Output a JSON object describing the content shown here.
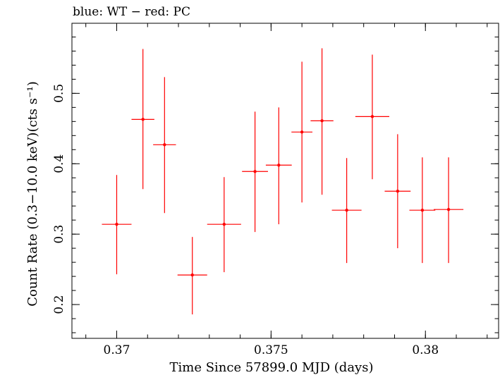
{
  "chart_data": {
    "type": "scatter",
    "title": "blue: WT − red: PC",
    "xlabel": "Time Since 57899.0 MJD (days)",
    "ylabel": "Count Rate (0.3−10.0 keV)(cts s⁻¹)",
    "xlim": [
      0.36855,
      0.38237
    ],
    "ylim": [
      0.152,
      0.5995
    ],
    "x_major_ticks": [
      0.37,
      0.375,
      0.38
    ],
    "x_tick_labels": [
      "0.37",
      "0.375",
      "0.38"
    ],
    "x_minor_step": 0.001,
    "y_major_ticks": [
      0.2,
      0.3,
      0.4,
      0.5
    ],
    "y_tick_labels": [
      "0.2",
      "0.3",
      "0.4",
      "0.5"
    ],
    "y_minor_step": 0.02,
    "grid": false,
    "series": [
      {
        "color": "#ff0000",
        "points": [
          {
            "x": 0.37,
            "y": 0.314,
            "xerr": 0.00048,
            "ylo": 0.243,
            "yhi": 0.384
          },
          {
            "x": 0.37085,
            "y": 0.463,
            "xerr": 0.00037,
            "ylo": 0.364,
            "yhi": 0.563
          },
          {
            "x": 0.37155,
            "y": 0.427,
            "xerr": 0.00037,
            "ylo": 0.33,
            "yhi": 0.523
          },
          {
            "x": 0.37245,
            "y": 0.242,
            "xerr": 0.00048,
            "ylo": 0.186,
            "yhi": 0.296
          },
          {
            "x": 0.37348,
            "y": 0.314,
            "xerr": 0.00055,
            "ylo": 0.246,
            "yhi": 0.381
          },
          {
            "x": 0.37448,
            "y": 0.389,
            "xerr": 0.00042,
            "ylo": 0.303,
            "yhi": 0.474
          },
          {
            "x": 0.37525,
            "y": 0.398,
            "xerr": 0.00042,
            "ylo": 0.314,
            "yhi": 0.48
          },
          {
            "x": 0.376,
            "y": 0.445,
            "xerr": 0.00034,
            "ylo": 0.345,
            "yhi": 0.545
          },
          {
            "x": 0.37665,
            "y": 0.461,
            "xerr": 0.00037,
            "ylo": 0.356,
            "yhi": 0.564
          },
          {
            "x": 0.37745,
            "y": 0.334,
            "xerr": 0.00048,
            "ylo": 0.259,
            "yhi": 0.408
          },
          {
            "x": 0.37828,
            "y": 0.467,
            "xerr": 0.00055,
            "ylo": 0.378,
            "yhi": 0.555
          },
          {
            "x": 0.3791,
            "y": 0.361,
            "xerr": 0.00042,
            "ylo": 0.28,
            "yhi": 0.442
          },
          {
            "x": 0.3799,
            "y": 0.334,
            "xerr": 0.00042,
            "ylo": 0.259,
            "yhi": 0.409
          },
          {
            "x": 0.38075,
            "y": 0.335,
            "xerr": 0.00048,
            "ylo": 0.259,
            "yhi": 0.409
          }
        ]
      }
    ]
  }
}
